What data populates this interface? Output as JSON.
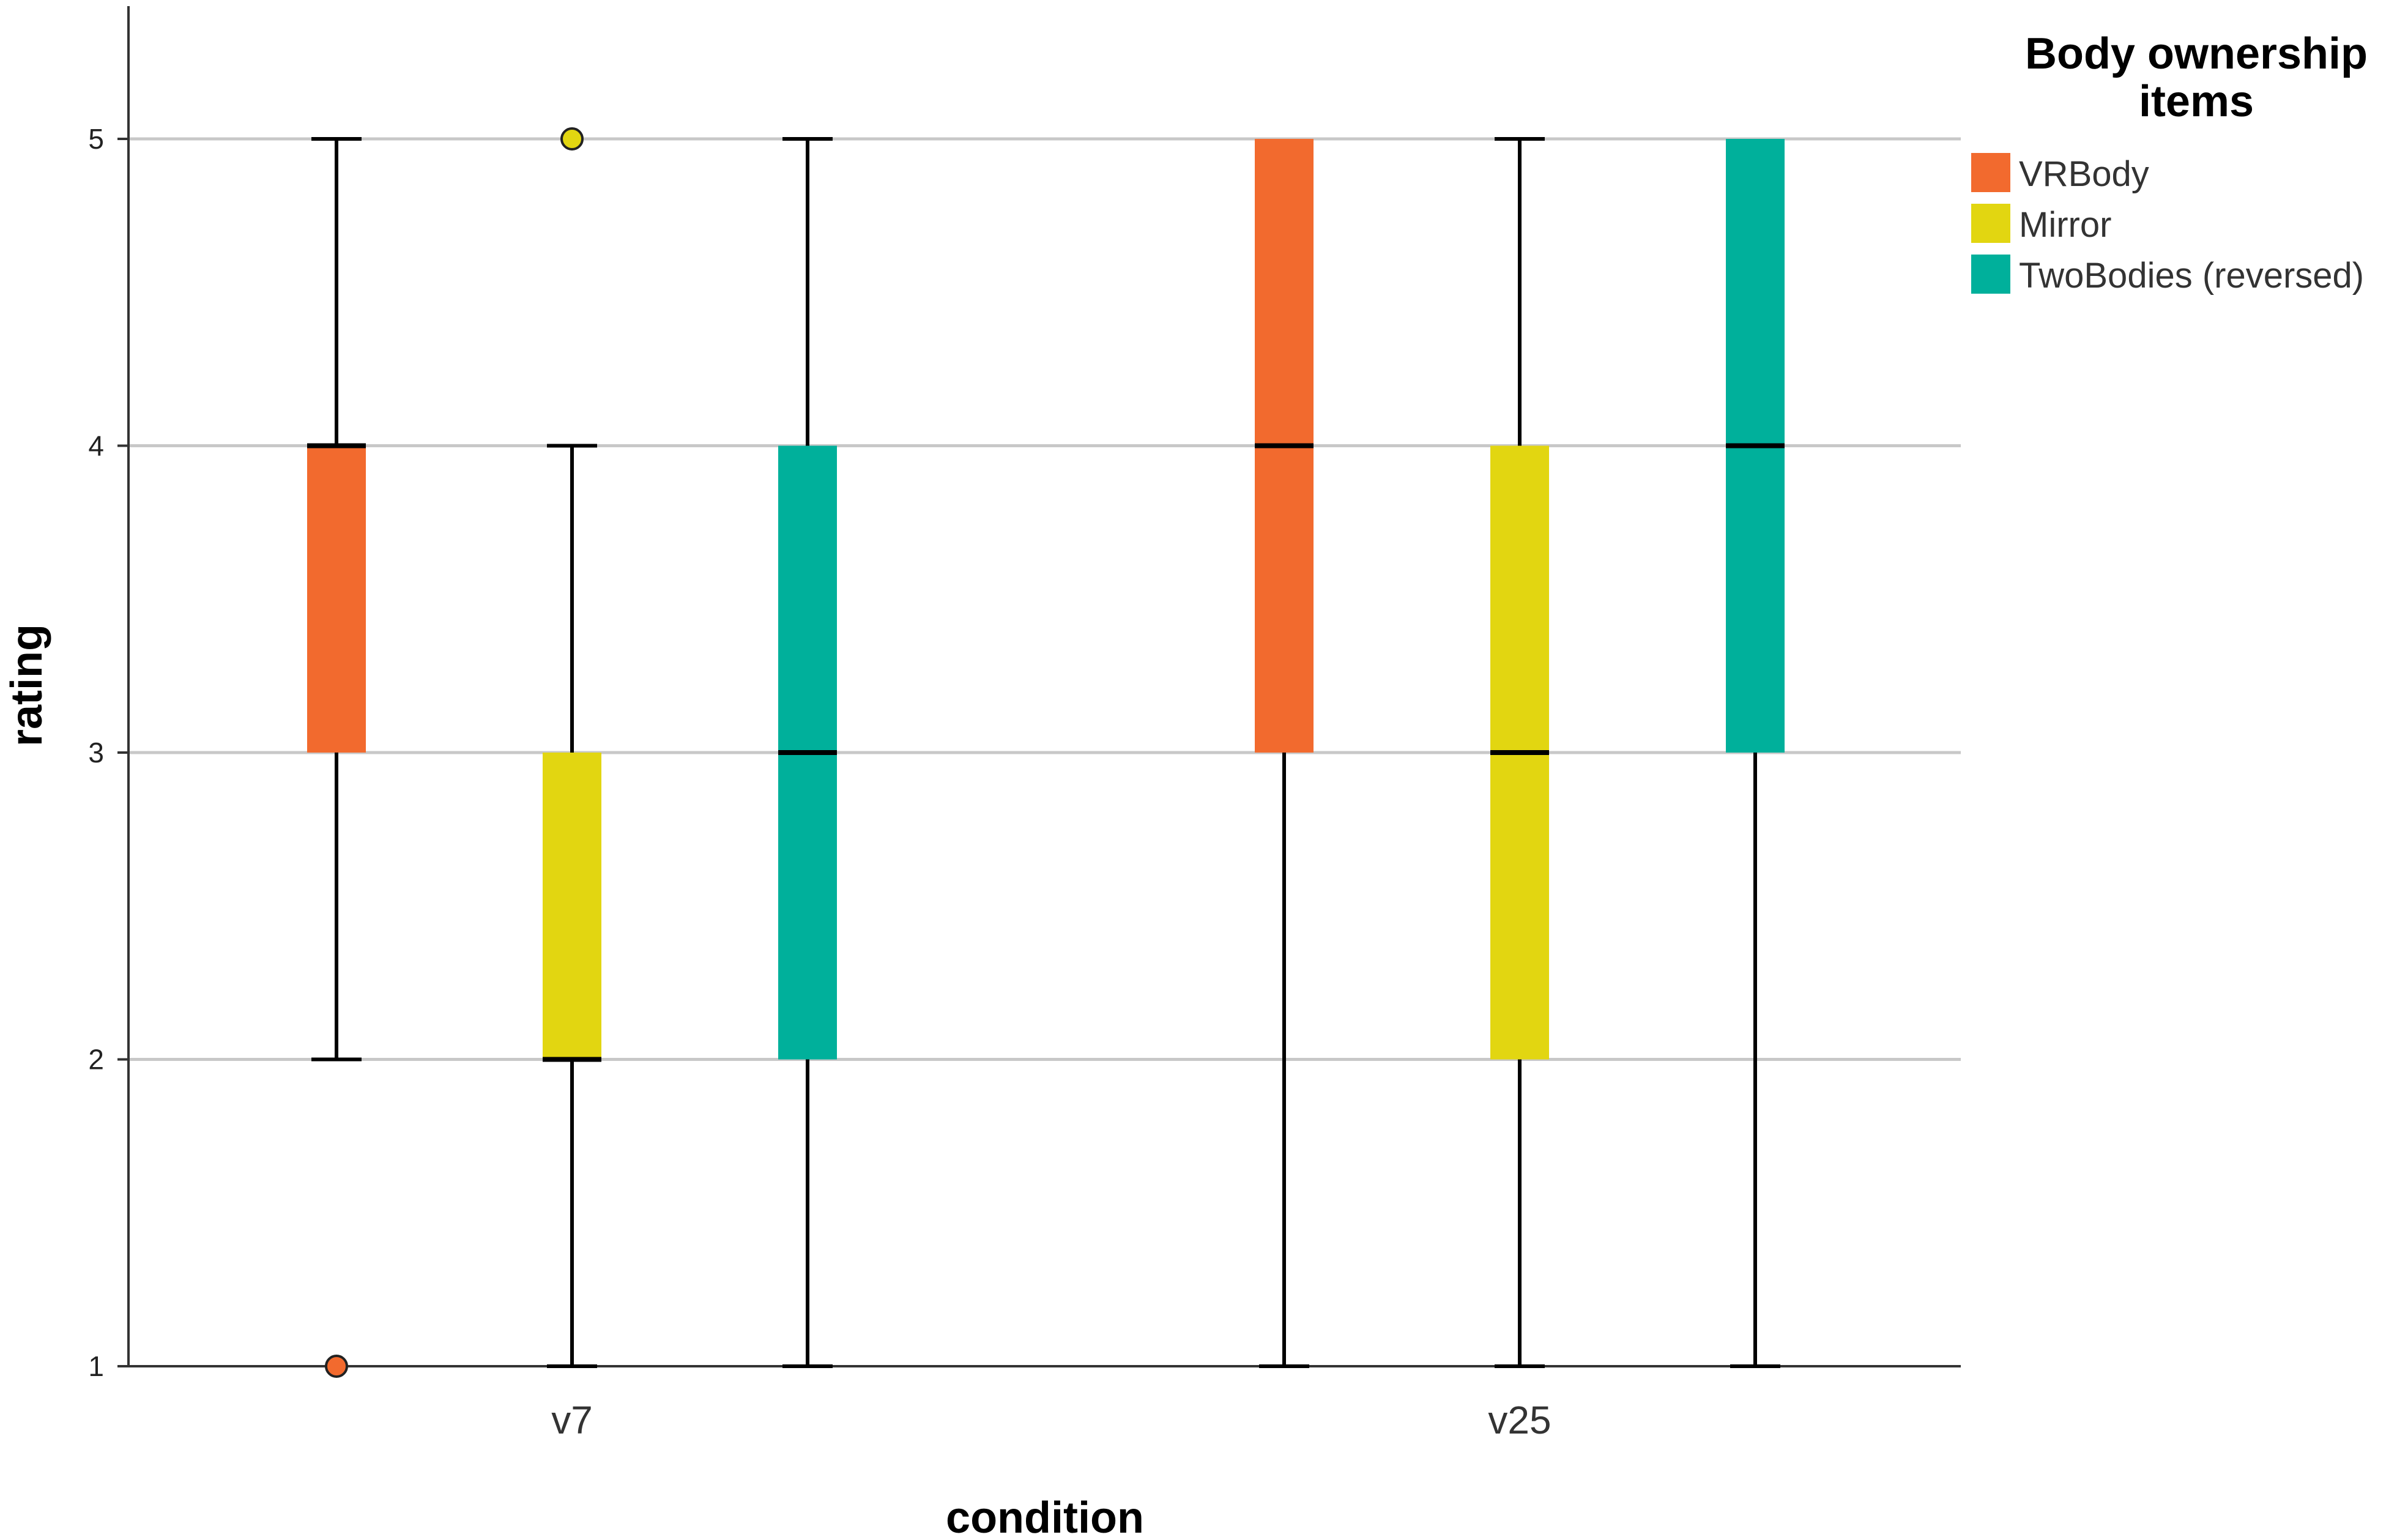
{
  "chart_data": {
    "type": "boxplot",
    "xlabel": "condition",
    "ylabel": "rating",
    "categories": [
      "v7",
      "v25"
    ],
    "ylim": [
      1,
      5.4
    ],
    "yticks": [
      1,
      2,
      3,
      4,
      5
    ],
    "grid": true,
    "legend": {
      "title": "Body ownership items",
      "title_lines": [
        "Body ownership",
        "items"
      ],
      "placement": "top-right",
      "entries": [
        "VRBody",
        "Mirror",
        "TwoBodies (reversed)"
      ]
    },
    "series": [
      {
        "name": "VRBody",
        "color": "#F26A2E",
        "boxes": [
          {
            "category": "v7",
            "min": 2,
            "q1": 3,
            "median": 4,
            "q3": 4,
            "max": 5,
            "outliers": [
              1
            ]
          },
          {
            "category": "v25",
            "min": 1,
            "q1": 3,
            "median": 4,
            "q3": 5,
            "max": 5,
            "outliers": []
          }
        ]
      },
      {
        "name": "Mirror",
        "color": "#E2D611",
        "boxes": [
          {
            "category": "v7",
            "min": 1,
            "q1": 2,
            "median": 2,
            "q3": 3,
            "max": 4,
            "outliers": [
              5
            ]
          },
          {
            "category": "v25",
            "min": 1,
            "q1": 2,
            "median": 3,
            "q3": 4,
            "max": 5,
            "outliers": []
          }
        ]
      },
      {
        "name": "TwoBodies (reversed)",
        "color": "#00B09B",
        "boxes": [
          {
            "category": "v7",
            "min": 1,
            "q1": 2,
            "median": 3,
            "q3": 4,
            "max": 5,
            "outliers": []
          },
          {
            "category": "v25",
            "min": 1,
            "q1": 3,
            "median": 4,
            "q3": 5,
            "max": 5,
            "outliers": []
          }
        ]
      }
    ]
  }
}
